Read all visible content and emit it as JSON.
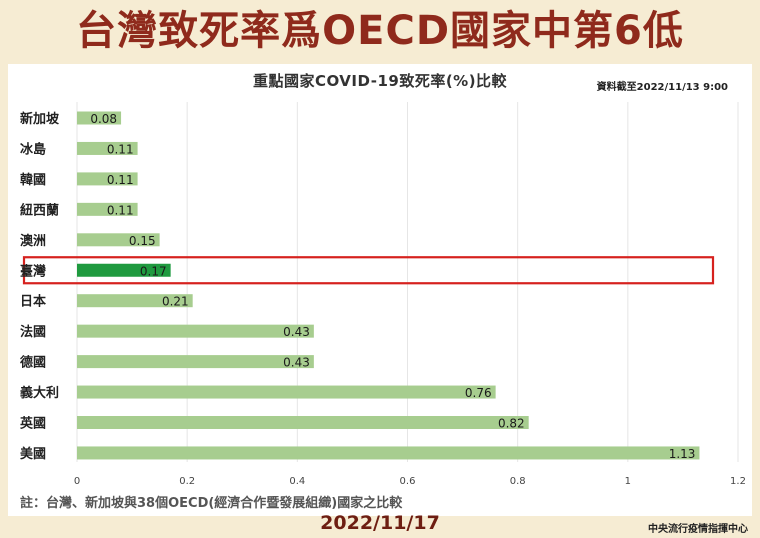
{
  "headline": "台灣致死率爲OECD國家中第6低",
  "as_of": "資料截至2022/11/13 9:00",
  "note": "註：台灣、新加坡與38個OECD(經濟合作暨發展組織)國家之比較",
  "footer": {
    "date": "2022/11/17",
    "source": "中央流行疫情指揮中心"
  },
  "colors": {
    "bar": "#a7cd8f",
    "highlight_bar": "#1f9a3f",
    "highlight_box": "#d6211e",
    "headline": "#8f2a1c",
    "background": "#f6ecd3",
    "grid": "#e6e6e6"
  },
  "chart_data": {
    "type": "bar",
    "orientation": "horizontal",
    "title": "重點國家COVID-19致死率(%)比較",
    "categories": [
      "新加坡",
      "冰島",
      "韓國",
      "紐西蘭",
      "澳洲",
      "臺灣",
      "日本",
      "法國",
      "德國",
      "義大利",
      "英國",
      "美國"
    ],
    "values": [
      0.08,
      0.11,
      0.11,
      0.11,
      0.15,
      0.17,
      0.21,
      0.43,
      0.43,
      0.76,
      0.82,
      1.13
    ],
    "value_labels": [
      "0.08",
      "0.11",
      "0.11",
      "0.11",
      "0.15",
      "0.17",
      "0.21",
      "0.43",
      "0.43",
      "0.76",
      "0.82",
      "1.13"
    ],
    "highlight": "臺灣",
    "xlim": [
      0,
      1.2
    ],
    "xticks": [
      0,
      0.2,
      0.4,
      0.6,
      0.8,
      1,
      1.2
    ],
    "xtick_labels": [
      "0",
      "0.2",
      "0.4",
      "0.6",
      "0.8",
      "1",
      "1.2"
    ],
    "grid": true,
    "legend": "none"
  }
}
